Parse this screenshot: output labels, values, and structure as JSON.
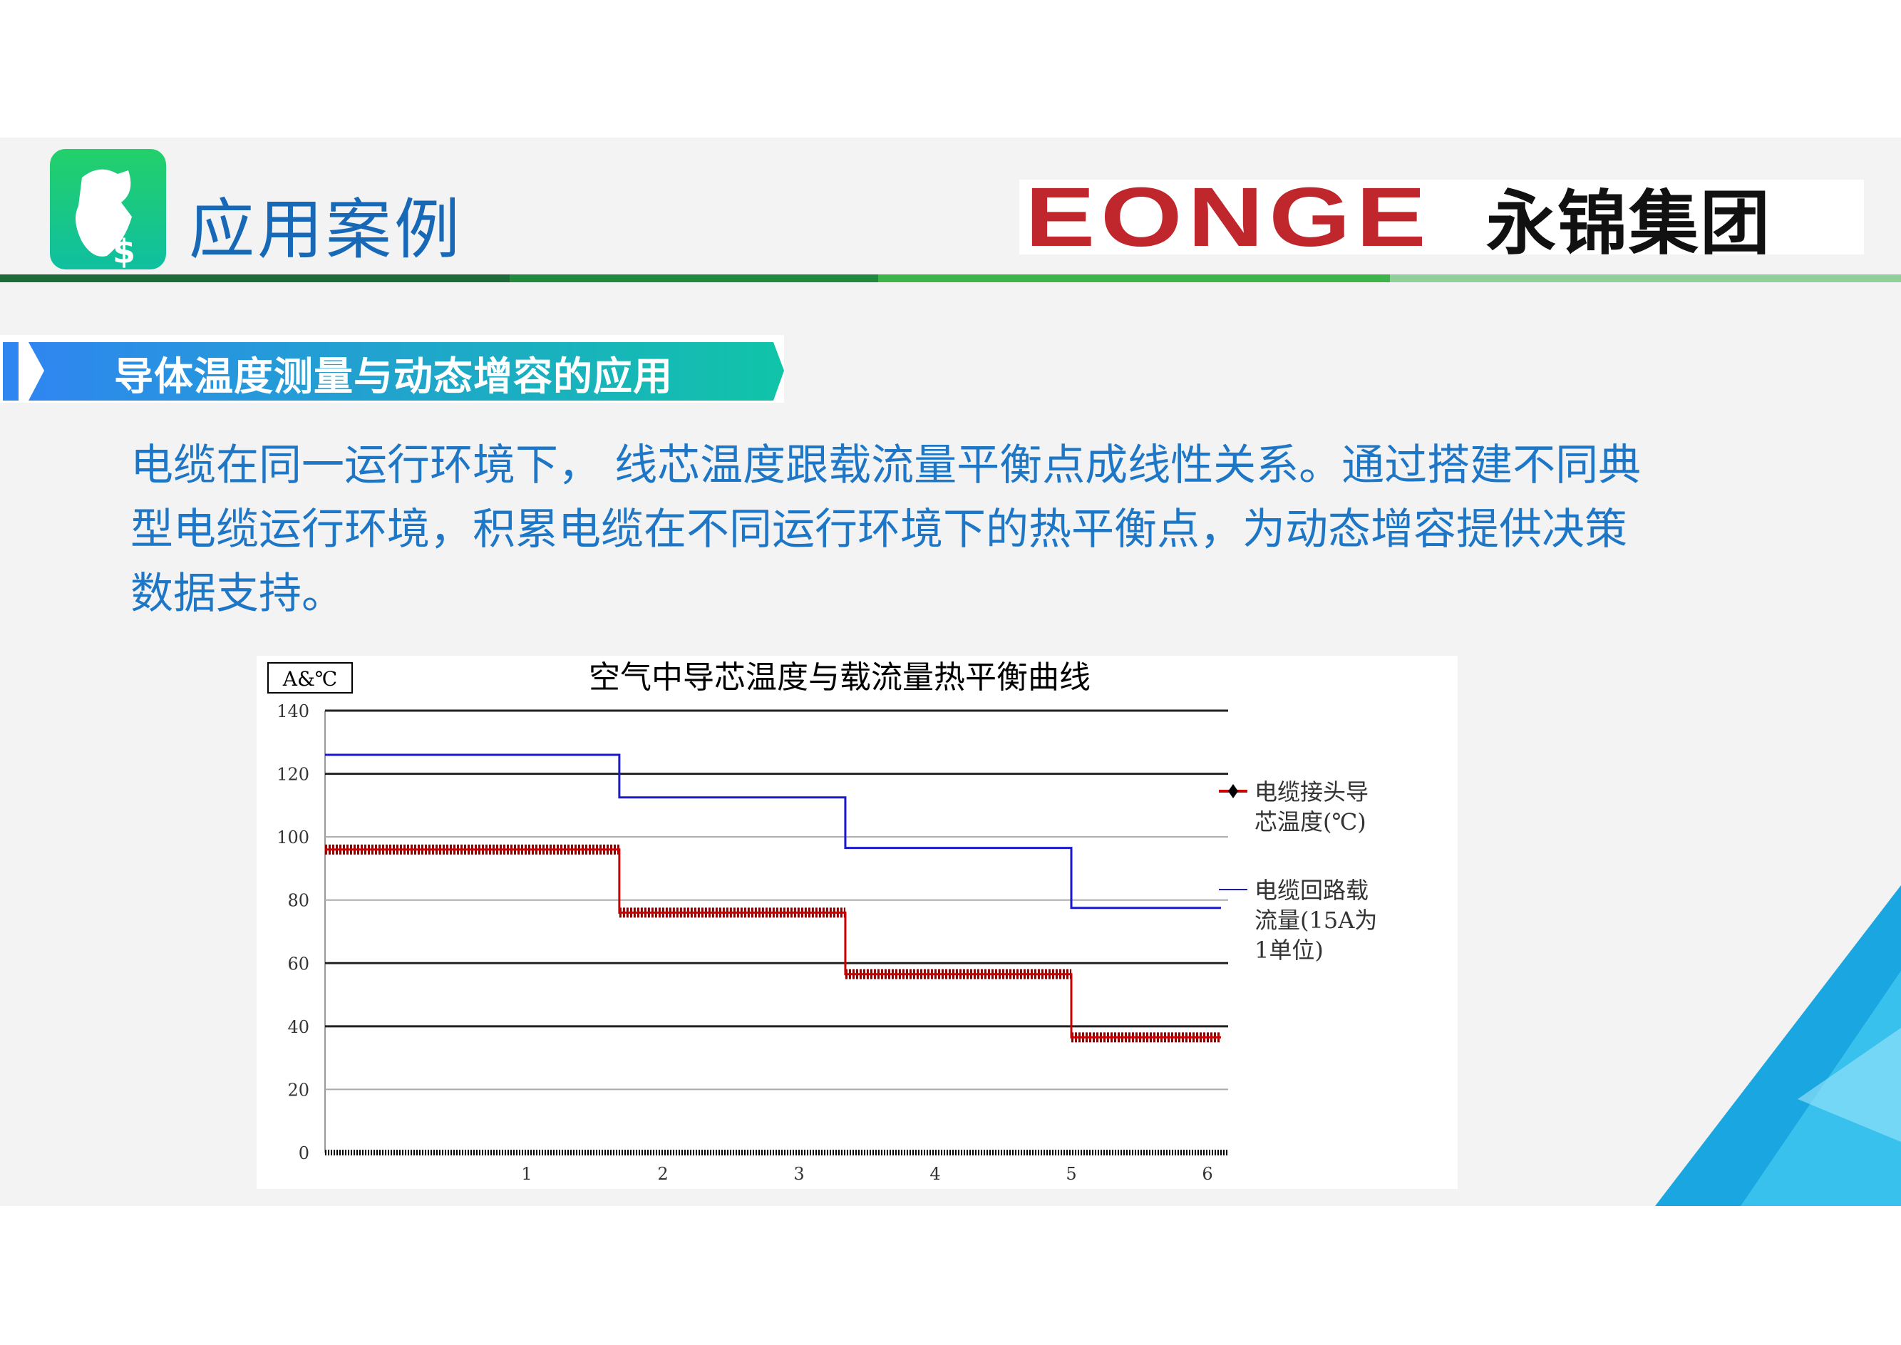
{
  "header": {
    "title": "应用案例",
    "logo_en": "EONGE",
    "logo_cn": "永锦集团"
  },
  "section": {
    "banner": "导体温度测量与动态增容的应用",
    "paragraph": "电缆在同一运行环境下， 线芯温度跟载流量平衡点成线性关系。通过搭建不同典型电缆运行环境，积累电缆在不同运行环境下的热平衡点，为动态增容提供决策数据支持。"
  },
  "colors": {
    "title": "#1769b8",
    "logo_red": "#c0272d",
    "paragraph": "#1e77c6",
    "bar_segments": [
      "#1e6b3a",
      "#1f8a3e",
      "#3cb44a",
      "#8fcf9a"
    ],
    "temperature_series": "#cc0000",
    "current_series": "#1a1acc"
  },
  "chart_data": {
    "type": "line",
    "title": "空气中导芯温度与载流量热平衡曲线",
    "ylabel": "A&℃",
    "xlabel": "",
    "ylim": [
      0,
      140
    ],
    "yticks": [
      0,
      20,
      40,
      60,
      80,
      100,
      120,
      140
    ],
    "xticks": [
      "1",
      "2",
      "3",
      "4",
      "5",
      "6"
    ],
    "xlim": [
      0,
      6.6
    ],
    "grid": true,
    "legend_position": "right",
    "series": [
      {
        "name": "电缆接头导芯温度(℃)",
        "marker": "diamond",
        "steps": [
          {
            "x": [
              0,
              1.68
            ],
            "y": 96
          },
          {
            "x": [
              1.68,
              3.34
            ],
            "y": 76
          },
          {
            "x": [
              3.34,
              5.0
            ],
            "y": 56.5
          },
          {
            "x": [
              5.0,
              6.6
            ],
            "y": 36.5
          }
        ]
      },
      {
        "name": "电缆回路载流量(15A为1单位)",
        "marker": "none",
        "steps": [
          {
            "x": [
              0,
              1.68
            ],
            "y": 126
          },
          {
            "x": [
              1.68,
              3.34
            ],
            "y": 112.5
          },
          {
            "x": [
              3.34,
              5.0
            ],
            "y": 96.5
          },
          {
            "x": [
              5.0,
              6.6
            ],
            "y": 77.5
          }
        ]
      }
    ],
    "baseline_series_y": 0
  }
}
